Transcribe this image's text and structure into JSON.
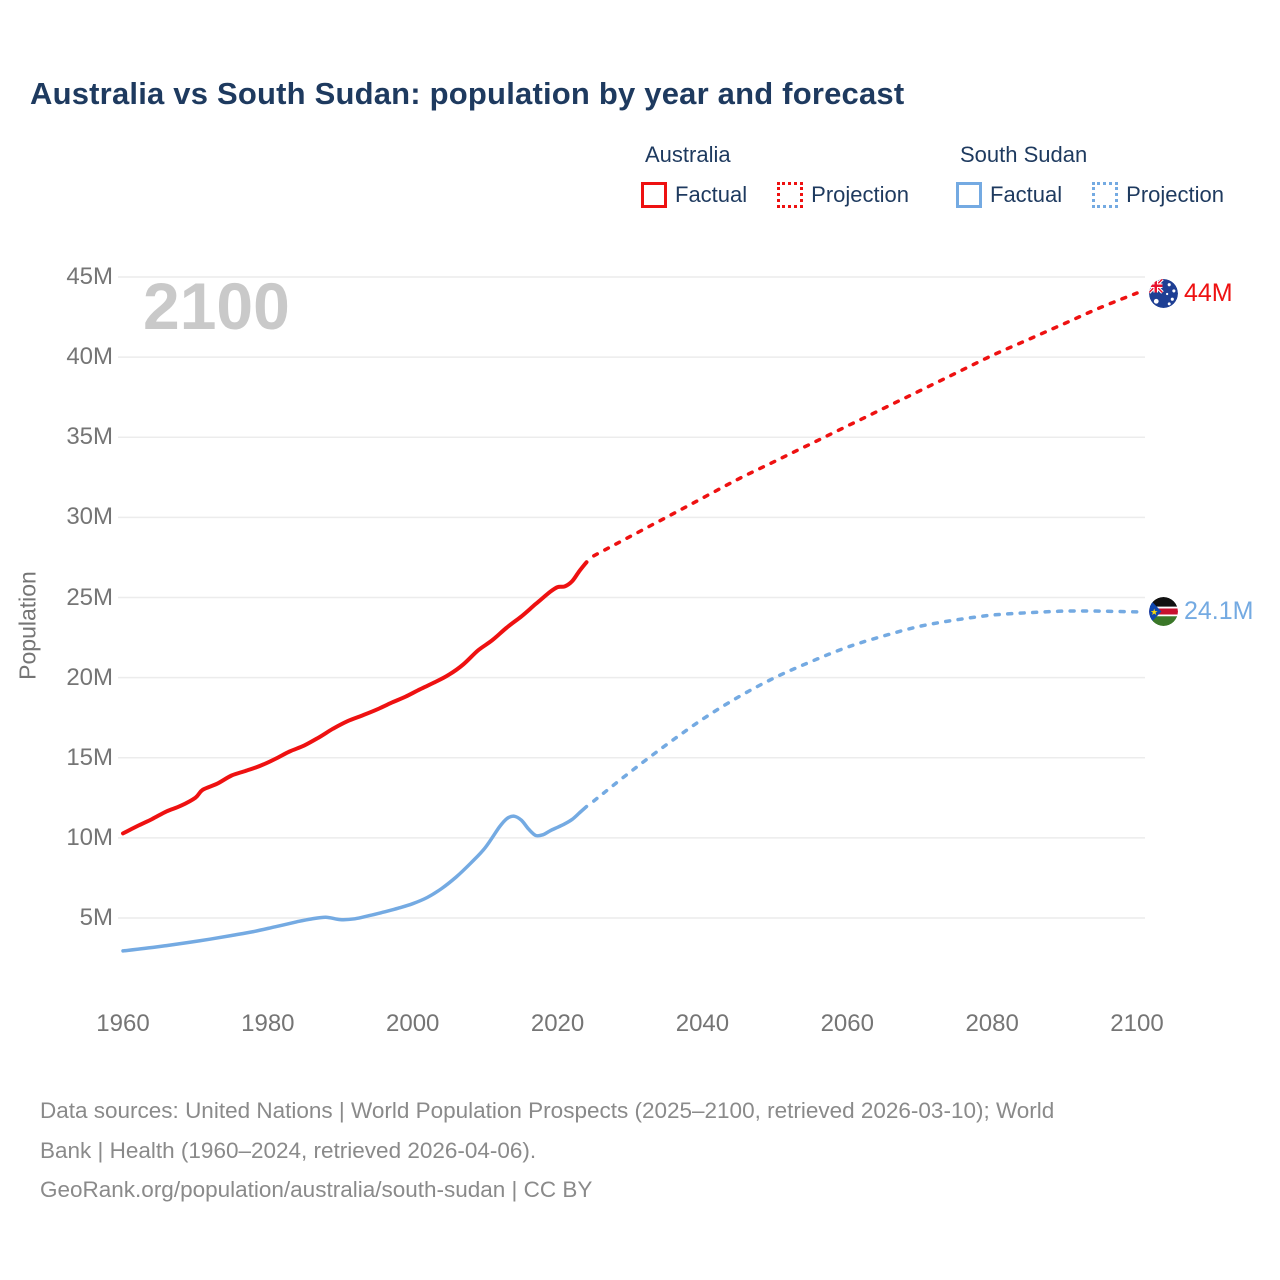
{
  "title": "Australia vs South Sudan: population by year and forecast",
  "watermark": "2100",
  "legend": {
    "groups": [
      {
        "name": "Australia",
        "color": "#ee1111",
        "items": [
          {
            "label": "Factual",
            "style": "solid"
          },
          {
            "label": "Projection",
            "style": "dotted"
          }
        ]
      },
      {
        "name": "South Sudan",
        "color": "#74aae2",
        "items": [
          {
            "label": "Factual",
            "style": "solid"
          },
          {
            "label": "Projection",
            "style": "dotted"
          }
        ]
      }
    ]
  },
  "end_labels": [
    {
      "series": "Australia",
      "text": "44M",
      "color": "#ee1111",
      "value": 44,
      "year": 2100,
      "flag": "australia-flag"
    },
    {
      "series": "South Sudan",
      "text": "24.1M",
      "color": "#74aae2",
      "value": 24.1,
      "year": 2100,
      "flag": "south-sudan-flag"
    }
  ],
  "footer": {
    "lines": [
      "Data sources: United Nations | World Population Prospects (2025–2100, retrieved 2026-03-10); World",
      "Bank | Health (1960–2024, retrieved 2026-04-06).",
      "GeoRank.org/population/australia/south-sudan | CC BY"
    ]
  },
  "chart_data": {
    "type": "line",
    "title": "Australia vs South Sudan: population by year and forecast",
    "xlabel": "",
    "ylabel": "Population",
    "x_range": [
      1960,
      2100
    ],
    "ylim": [
      2,
      46
    ],
    "grid": "horizontal",
    "legend_position": "top-right",
    "x_ticks": [
      {
        "label": "1960",
        "value": 1960
      },
      {
        "label": "1980",
        "value": 1980
      },
      {
        "label": "2000",
        "value": 2000
      },
      {
        "label": "2020",
        "value": 2020
      },
      {
        "label": "2040",
        "value": 2040
      },
      {
        "label": "2060",
        "value": 2060
      },
      {
        "label": "2080",
        "value": 2080
      },
      {
        "label": "2100",
        "value": 2100
      }
    ],
    "y_ticks": [
      {
        "label": "5M",
        "value": 5
      },
      {
        "label": "10M",
        "value": 10
      },
      {
        "label": "15M",
        "value": 15
      },
      {
        "label": "20M",
        "value": 20
      },
      {
        "label": "25M",
        "value": 25
      },
      {
        "label": "30M",
        "value": 30
      },
      {
        "label": "35M",
        "value": 35
      },
      {
        "label": "40M",
        "value": 40
      },
      {
        "label": "45M",
        "value": 45
      }
    ],
    "unit": "millions of people",
    "series": [
      {
        "name": "Australia Factual",
        "color": "#ee1111",
        "dashed": false,
        "width": 4,
        "points": [
          [
            1960,
            10.28
          ],
          [
            1962,
            10.74
          ],
          [
            1964,
            11.17
          ],
          [
            1966,
            11.65
          ],
          [
            1968,
            12.01
          ],
          [
            1970,
            12.51
          ],
          [
            1971,
            13.0
          ],
          [
            1973,
            13.38
          ],
          [
            1975,
            13.89
          ],
          [
            1977,
            14.19
          ],
          [
            1979,
            14.51
          ],
          [
            1981,
            14.92
          ],
          [
            1983,
            15.39
          ],
          [
            1985,
            15.76
          ],
          [
            1987,
            16.26
          ],
          [
            1989,
            16.81
          ],
          [
            1991,
            17.28
          ],
          [
            1993,
            17.63
          ],
          [
            1995,
            18.0
          ],
          [
            1997,
            18.42
          ],
          [
            1999,
            18.81
          ],
          [
            2001,
            19.27
          ],
          [
            2003,
            19.7
          ],
          [
            2005,
            20.18
          ],
          [
            2007,
            20.83
          ],
          [
            2009,
            21.69
          ],
          [
            2011,
            22.34
          ],
          [
            2013,
            23.13
          ],
          [
            2015,
            23.82
          ],
          [
            2017,
            24.6
          ],
          [
            2019,
            25.36
          ],
          [
            2020,
            25.65
          ],
          [
            2021,
            25.69
          ],
          [
            2022,
            26.01
          ],
          [
            2023,
            26.64
          ],
          [
            2024,
            27.2
          ]
        ]
      },
      {
        "name": "Australia Projection",
        "color": "#ee1111",
        "dashed": true,
        "width": 3.5,
        "points": [
          [
            2025,
            27.6
          ],
          [
            2030,
            28.8
          ],
          [
            2035,
            30.0
          ],
          [
            2040,
            31.2
          ],
          [
            2045,
            32.4
          ],
          [
            2050,
            33.5
          ],
          [
            2055,
            34.6
          ],
          [
            2060,
            35.7
          ],
          [
            2065,
            36.8
          ],
          [
            2070,
            37.9
          ],
          [
            2075,
            39.0
          ],
          [
            2080,
            40.1
          ],
          [
            2085,
            41.1
          ],
          [
            2090,
            42.1
          ],
          [
            2095,
            43.1
          ],
          [
            2100,
            44.0
          ]
        ]
      },
      {
        "name": "South Sudan Factual",
        "color": "#74aae2",
        "dashed": false,
        "width": 3.5,
        "points": [
          [
            1960,
            2.95
          ],
          [
            1963,
            3.1
          ],
          [
            1966,
            3.28
          ],
          [
            1969,
            3.47
          ],
          [
            1972,
            3.68
          ],
          [
            1975,
            3.91
          ],
          [
            1978,
            4.15
          ],
          [
            1981,
            4.45
          ],
          [
            1984,
            4.76
          ],
          [
            1986,
            4.94
          ],
          [
            1988,
            5.05
          ],
          [
            1990,
            4.9
          ],
          [
            1992,
            4.95
          ],
          [
            1994,
            5.15
          ],
          [
            1996,
            5.37
          ],
          [
            1998,
            5.61
          ],
          [
            2000,
            5.89
          ],
          [
            2002,
            6.28
          ],
          [
            2004,
            6.84
          ],
          [
            2006,
            7.56
          ],
          [
            2008,
            8.42
          ],
          [
            2010,
            9.38
          ],
          [
            2012,
            10.7
          ],
          [
            2013,
            11.2
          ],
          [
            2014,
            11.35
          ],
          [
            2015,
            11.1
          ],
          [
            2016,
            10.55
          ],
          [
            2017,
            10.15
          ],
          [
            2018,
            10.2
          ],
          [
            2019,
            10.45
          ],
          [
            2020,
            10.66
          ],
          [
            2021,
            10.88
          ],
          [
            2022,
            11.15
          ],
          [
            2023,
            11.55
          ],
          [
            2024,
            11.95
          ]
        ]
      },
      {
        "name": "South Sudan Projection",
        "color": "#74aae2",
        "dashed": true,
        "width": 3.5,
        "points": [
          [
            2025,
            12.3
          ],
          [
            2030,
            14.1
          ],
          [
            2035,
            15.8
          ],
          [
            2040,
            17.4
          ],
          [
            2045,
            18.8
          ],
          [
            2050,
            20.0
          ],
          [
            2055,
            21.0
          ],
          [
            2060,
            21.9
          ],
          [
            2065,
            22.6
          ],
          [
            2070,
            23.2
          ],
          [
            2075,
            23.6
          ],
          [
            2080,
            23.9
          ],
          [
            2085,
            24.05
          ],
          [
            2090,
            24.15
          ],
          [
            2095,
            24.15
          ],
          [
            2100,
            24.1
          ]
        ]
      }
    ]
  }
}
